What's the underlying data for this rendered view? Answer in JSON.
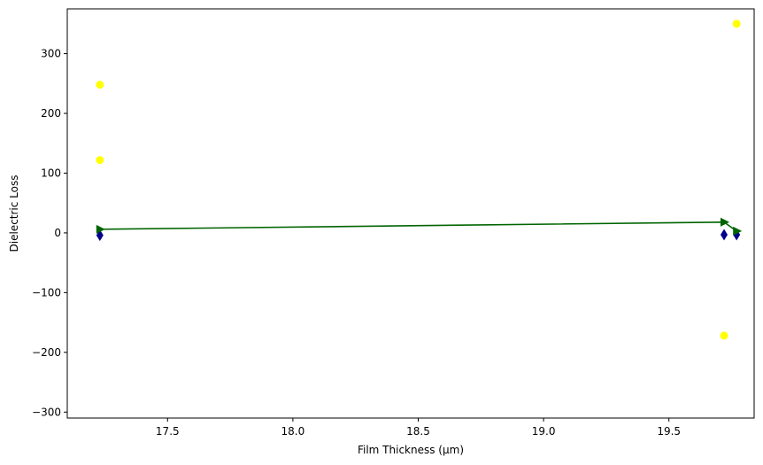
{
  "chart_data": {
    "type": "scatter",
    "title": "",
    "xlabel": "Film Thickness (µm)",
    "ylabel": "Dielectric Loss",
    "xlim": [
      17.1,
      19.84
    ],
    "ylim": [
      -310,
      375
    ],
    "xticks": [
      17.5,
      18.0,
      18.5,
      19.0,
      19.5
    ],
    "xtick_labels": [
      "17.5",
      "18.0",
      "18.5",
      "19.0",
      "19.5"
    ],
    "yticks": [
      -300,
      -200,
      -100,
      0,
      100,
      200,
      300
    ],
    "ytick_labels": [
      "−300",
      "−200",
      "−100",
      "0",
      "100",
      "200",
      "300"
    ],
    "grid": false,
    "legend": "none",
    "series": [
      {
        "marker": "circle",
        "color": "#ffff00",
        "points": [
          {
            "x": 17.23,
            "y": 248
          },
          {
            "x": 17.23,
            "y": 122
          },
          {
            "x": 19.72,
            "y": -172
          },
          {
            "x": 19.77,
            "y": 350
          }
        ]
      },
      {
        "marker": "diamond",
        "color": "#00008b",
        "points": [
          {
            "x": 17.23,
            "y": -4
          },
          {
            "x": 19.72,
            "y": -3
          },
          {
            "x": 19.77,
            "y": -3
          }
        ]
      },
      {
        "marker": "triangle-right",
        "line": true,
        "color": "#006400",
        "points": [
          {
            "x": 17.23,
            "y": 6
          },
          {
            "x": 19.72,
            "y": 18
          },
          {
            "x": 19.77,
            "y": 3
          }
        ]
      }
    ]
  }
}
